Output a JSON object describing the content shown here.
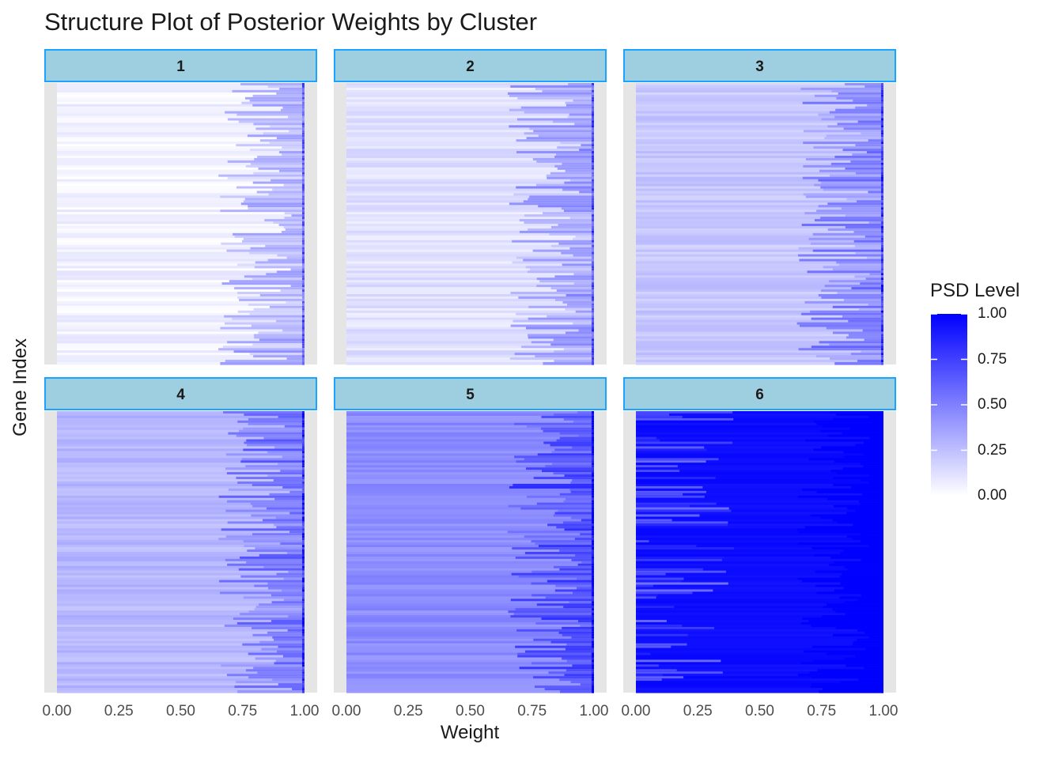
{
  "chart_data": {
    "type": "heatmap",
    "title": "Structure Plot of Posterior Weights by Cluster",
    "xlabel": "Weight",
    "ylabel": "Gene Index",
    "xlim": [
      0,
      1
    ],
    "x_ticks": [
      "0.00",
      "0.25",
      "0.50",
      "0.75",
      "1.00"
    ],
    "grid": false,
    "facets": [
      {
        "label": "1",
        "mean_psd_level": 0.05
      },
      {
        "label": "2",
        "mean_psd_level": 0.12
      },
      {
        "label": "3",
        "mean_psd_level": 0.22
      },
      {
        "label": "4",
        "mean_psd_level": 0.28
      },
      {
        "label": "5",
        "mean_psd_level": 0.45
      },
      {
        "label": "6",
        "mean_psd_level": 0.95
      }
    ],
    "legend": {
      "title": "PSD Level",
      "placement": "right",
      "range": [
        0,
        1
      ],
      "ticks": [
        "1.00",
        "0.75",
        "0.50",
        "0.25",
        "0.00"
      ],
      "low_color": "#ffffff",
      "high_color": "#0000ff"
    },
    "colors": {
      "strip_fill": "#9ecfe0",
      "strip_border": "#1aa3ff",
      "panel_background": "#e5e5e5"
    }
  }
}
